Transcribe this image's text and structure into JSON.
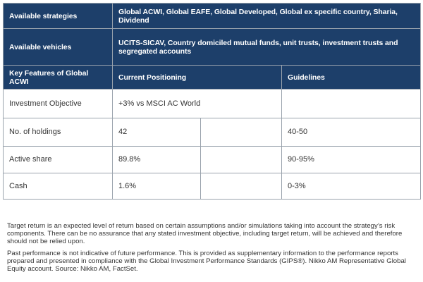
{
  "table": {
    "strategies": {
      "label": "Available strategies",
      "value": "Global ACWI, Global EAFE, Global Developed, Global ex specific country, Sharia, Dividend"
    },
    "vehicles": {
      "label": "Available vehicles",
      "value": "UCITS-SICAV, Country domiciled mutual funds, unit trusts, investment trusts and segregated accounts"
    },
    "header": {
      "col1": "Key Features of Global ACWI",
      "col2": "Current Positioning",
      "col3": "Guidelines"
    },
    "rows": [
      {
        "feature": "Investment Objective",
        "current": "+3% vs MSCI AC World",
        "guideline": ""
      },
      {
        "feature": "No. of holdings",
        "current": "42",
        "guideline": "40-50"
      },
      {
        "feature": "Active share",
        "current": "89.8%",
        "guideline": "90-95%"
      },
      {
        "feature": "Cash",
        "current": "1.6%",
        "guideline": "0-3%"
      }
    ]
  },
  "notes": {
    "target_return": "Target return is an expected level of return based on certain assumptions and/or simulations taking into account the strategy’s risk components. There can be no assurance that any stated investment objective, including target return, will be achieved and therefore should not be relied upon.",
    "past_performance": "Past performance is not indicative of future performance. This is provided as supplementary information to the performance reports prepared and presented in compliance with the Global Investment Performance Standards (GIPS®).  Nikko AM Representative Global Equity account. Source: Nikko AM, FactSet."
  },
  "colors": {
    "header_bg": "#1d3f6a",
    "border": "#9aa3ad"
  }
}
